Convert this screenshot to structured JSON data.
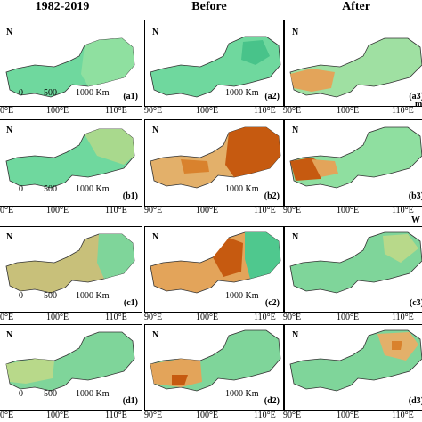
{
  "columns": [
    "1982-2019",
    "Before",
    "After"
  ],
  "north_label": "N",
  "scale": {
    "zero": "0",
    "mid": "500",
    "end": "1000 Km"
  },
  "lon_ticks": {
    "t90": "90°E",
    "t100": "100°E",
    "t110": "110°E",
    "t90_cut": "0°E"
  },
  "side_labels": {
    "r1": "m",
    "r2": "W"
  },
  "panels": [
    [
      "(a1)",
      "(a2)",
      "(a3)"
    ],
    [
      "(b1)",
      "(b2)",
      "(b3)"
    ],
    [
      "(c1)",
      "(c2)",
      "(c3)"
    ],
    [
      "(d1)",
      "(d2)",
      "(d3)"
    ]
  ],
  "colors": {
    "green": "#63d39a",
    "light_green": "#9fe0a2",
    "tan": "#e3b06a",
    "orange": "#d9822d",
    "dark_orange": "#c65a10"
  }
}
